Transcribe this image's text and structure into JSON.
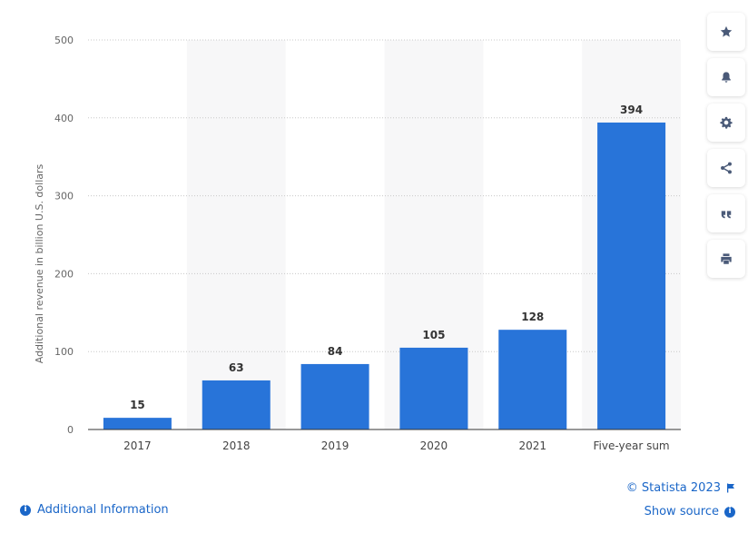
{
  "chart_data": {
    "type": "bar",
    "categories": [
      "2017",
      "2018",
      "2019",
      "2020",
      "2021",
      "Five-year sum"
    ],
    "values": [
      15,
      63,
      84,
      105,
      128,
      394
    ],
    "data_labels": [
      "15",
      "63",
      "84",
      "105",
      "128",
      "394"
    ],
    "ylabel": "Additional revenue in billion U.S. dollars",
    "ylim": [
      0,
      500
    ],
    "yticks": [
      "0",
      "100",
      "200",
      "300",
      "400",
      "500"
    ],
    "grid": true,
    "bar_color": "#2874d9",
    "alt_band_color": "#f7f7f8"
  },
  "toolbar": {
    "icons": [
      "star-icon",
      "bell-icon",
      "gear-icon",
      "share-icon",
      "quote-icon",
      "print-icon"
    ]
  },
  "footer": {
    "additional_info": "Additional Information",
    "copyright": "© Statista 2023",
    "show_source": "Show source"
  },
  "colors": {
    "link": "#1a66c8",
    "icon": "#4a5a78"
  }
}
